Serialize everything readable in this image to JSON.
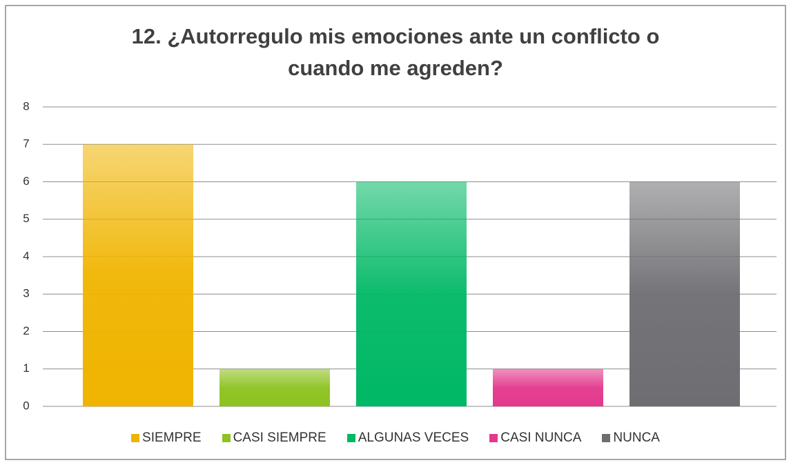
{
  "chart_data": {
    "type": "bar",
    "title": "12. ¿Autorregulo mis emociones ante un conflicto o\ncuando me agreden?",
    "categories": [
      "SIEMPRE",
      "CASI SIEMPRE",
      "ALGUNAS VECES",
      "CASI NUNCA",
      "NUNCA"
    ],
    "values": [
      7,
      1,
      6,
      1,
      6
    ],
    "colors": [
      "#f0b400",
      "#8dc21f",
      "#00b865",
      "#e3388c",
      "#6e6e72"
    ],
    "ylim": [
      0,
      8
    ],
    "yticks": [
      0,
      1,
      2,
      3,
      4,
      5,
      6,
      7,
      8
    ],
    "grid": true,
    "legend": "bottom"
  }
}
